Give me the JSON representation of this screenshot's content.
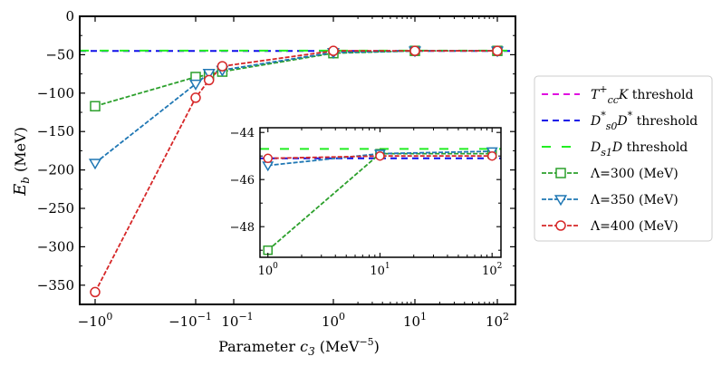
{
  "chart_data": {
    "type": "line",
    "xlabel": {
      "prefix": "Parameter ",
      "var": "c",
      "sub": "3",
      "unit_open": " (MeV",
      "unit_sup": "−5",
      "unit_close": ")"
    },
    "ylabel": {
      "var": "E",
      "sub": "b",
      "unit": " (MeV)"
    },
    "ylim": [
      -375,
      0
    ],
    "yticks": [
      0,
      -50,
      -100,
      -150,
      -200,
      -250,
      -300,
      -350
    ],
    "ytick_labels": [
      "0",
      "−50",
      "−100",
      "−150",
      "−200",
      "−250",
      "−300",
      "−350"
    ],
    "xtick_labels": [
      {
        "base": "−10",
        "exp": "0"
      },
      {
        "base": "−10",
        "exp": "−1"
      },
      {
        "base": "10",
        "exp": "−1"
      },
      {
        "base": "10",
        "exp": "0"
      },
      {
        "base": "10",
        "exp": "1"
      },
      {
        "base": "10",
        "exp": "2"
      }
    ],
    "thresholds": [
      {
        "name": "T_cc^+ K threshold",
        "value": 0,
        "color": "#e010e0"
      },
      {
        "name": "D_s0^* D^* threshold",
        "value": -45.1,
        "color": "#1010e8"
      },
      {
        "name": "D_s1 D threshold",
        "value": -44.7,
        "color": "#22ee22"
      }
    ],
    "series": [
      {
        "name": "Λ=300 (MeV)",
        "color": "#2ca02c",
        "marker": "square",
        "x_tick_index": [
          0,
          1.0,
          1.35,
          1.7,
          3.0,
          4.0,
          5.0
        ],
        "values": [
          -117,
          -79,
          -76,
          -72,
          -48,
          -45,
          -45
        ]
      },
      {
        "name": "Λ=350 (MeV)",
        "color": "#1f77b4",
        "marker": "triangle-down",
        "x_tick_index": [
          0,
          1.0,
          1.35,
          1.7,
          3.0,
          4.0,
          5.0
        ],
        "values": [
          -191,
          -88,
          -74,
          -70,
          -47,
          -45,
          -45
        ]
      },
      {
        "name": "Λ=400 (MeV)",
        "color": "#d62728",
        "marker": "circle",
        "x_tick_index": [
          0,
          1.0,
          1.35,
          1.7,
          3.0,
          4.0,
          5.0
        ],
        "values": [
          -359,
          -106,
          -83,
          -65,
          -45,
          -45,
          -45
        ]
      }
    ],
    "legend": [
      {
        "parts": [
          {
            "t": "T",
            "i": true
          },
          {
            "t": "+",
            "sup": true
          },
          {
            "t": "cc",
            "sub": true,
            "i": true
          },
          {
            "t": "K",
            "i": true
          },
          {
            "t": " threshold"
          }
        ],
        "color": "#e010e0",
        "style": "threshold"
      },
      {
        "parts": [
          {
            "t": "D",
            "i": true
          },
          {
            "t": "*",
            "sup": true
          },
          {
            "t": "s0",
            "sub": true,
            "i": true
          },
          {
            "t": "D",
            "i": true
          },
          {
            "t": "*",
            "sup": true
          },
          {
            "t": " threshold"
          }
        ],
        "color": "#1010e8",
        "style": "threshold"
      },
      {
        "parts": [
          {
            "t": "D",
            "i": true
          },
          {
            "t": "s1",
            "sub": true,
            "i": true
          },
          {
            "t": "D",
            "i": true
          },
          {
            "t": " threshold"
          }
        ],
        "color": "#22ee22",
        "style": "threshold"
      },
      {
        "parts": [
          {
            "t": "Λ=300 (MeV)"
          }
        ],
        "color": "#2ca02c",
        "style": "square"
      },
      {
        "parts": [
          {
            "t": "Λ=350 (MeV)"
          }
        ],
        "color": "#1f77b4",
        "style": "triangle-down"
      },
      {
        "parts": [
          {
            "t": "Λ=400 (MeV)"
          }
        ],
        "color": "#d62728",
        "style": "circle"
      }
    ],
    "inset": {
      "xscale": "log",
      "xlim": [
        0.85,
        120
      ],
      "ylim": [
        -49.3,
        -43.8
      ],
      "yticks": [
        -44,
        -46,
        -48
      ],
      "ytick_labels": [
        "−44",
        "−46",
        "−48"
      ],
      "xticks": [
        1,
        10,
        100
      ],
      "xtick_labels": [
        {
          "base": "10",
          "exp": "0"
        },
        {
          "base": "10",
          "exp": "1"
        },
        {
          "base": "10",
          "exp": "2"
        }
      ],
      "series": [
        {
          "name": "Λ=300 (MeV)",
          "x": [
            1,
            10,
            100
          ],
          "values": [
            -49.0,
            -44.9,
            -44.9
          ]
        },
        {
          "name": "Λ=350 (MeV)",
          "x": [
            1,
            10,
            100
          ],
          "values": [
            -45.4,
            -44.9,
            -44.8
          ]
        },
        {
          "name": "Λ=400 (MeV)",
          "x": [
            1,
            10,
            100
          ],
          "values": [
            -45.1,
            -45.0,
            -45.0
          ]
        }
      ]
    }
  }
}
